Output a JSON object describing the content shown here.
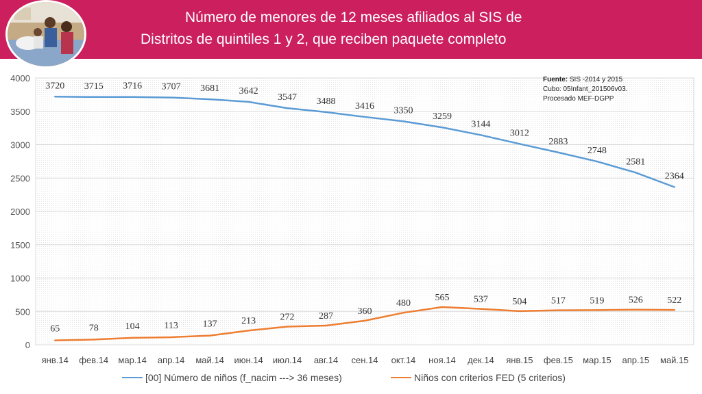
{
  "header": {
    "title_line1": "Número de menores de 12 meses afiliados al SIS de",
    "title_line2": "Distritos de quintiles 1 y 2, que reciben paquete completo",
    "bg_color": "#cc1f5e"
  },
  "source": {
    "label": "Fuente:",
    "line1": "SIS -2014 y 2015",
    "line2": "Cubo: 05Infant_201506v03.",
    "line3": "Procesado MEF-DGPP"
  },
  "chart_data": {
    "type": "line",
    "title": "Número de menores de 12 meses afiliados al SIS de Distritos de quintiles 1 y 2, que reciben paquete completo",
    "categories": [
      "янв.14",
      "фев.14",
      "мар.14",
      "апр.14",
      "май.14",
      "июн.14",
      "июл.14",
      "авг.14",
      "сен.14",
      "окт.14",
      "ноя.14",
      "дек.14",
      "янв.15",
      "фев.15",
      "мар.15",
      "апр.15",
      "май.15"
    ],
    "ylim": [
      0,
      4000
    ],
    "yticks": [
      0,
      500,
      1000,
      1500,
      2000,
      2500,
      3000,
      3500,
      4000
    ],
    "grid": true,
    "legend_position": "bottom",
    "series": [
      {
        "name": "[00] Número de niños (f_nacim ---> 36 meses)",
        "color": "#5b9bd5",
        "values": [
          3720,
          3715,
          3716,
          3707,
          3681,
          3642,
          3547,
          3488,
          3416,
          3350,
          3259,
          3144,
          3012,
          2883,
          2748,
          2581,
          2364
        ]
      },
      {
        "name": "Niños con criterios FED (5 criterios)",
        "color": "#ed7d31",
        "values": [
          65,
          78,
          104,
          113,
          137,
          213,
          272,
          287,
          360,
          480,
          565,
          537,
          504,
          517,
          519,
          526,
          522
        ]
      }
    ]
  }
}
